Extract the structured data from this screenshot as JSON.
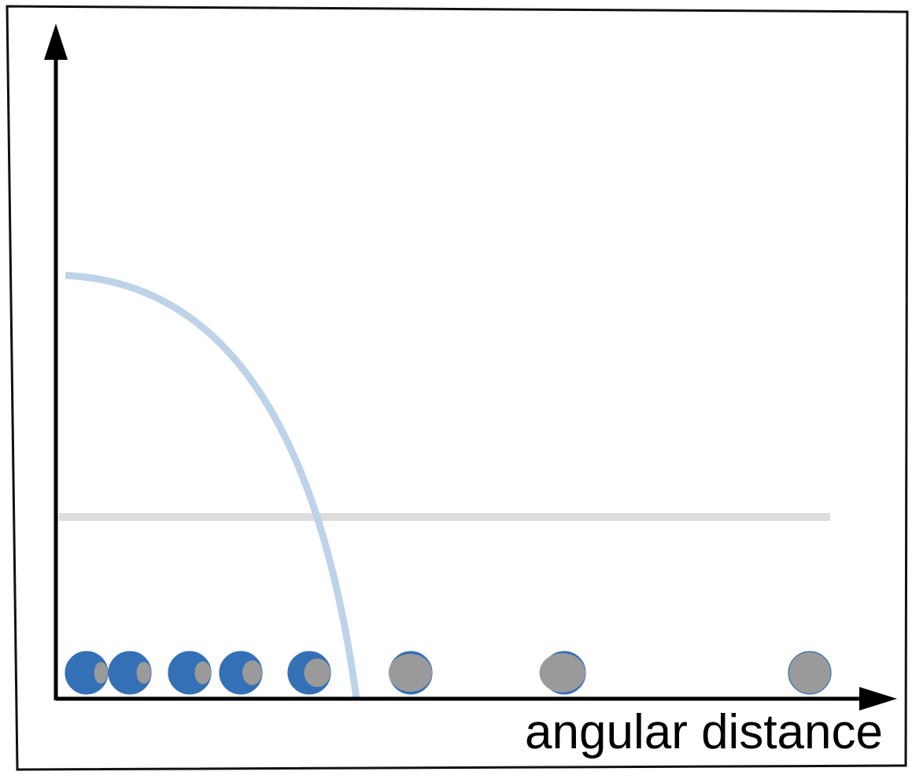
{
  "axis": {
    "x_label": "angular distance",
    "y_label": ""
  },
  "colors": {
    "frame": "#111111",
    "axis": "#000000",
    "curve": "#bdd3e8",
    "threshold_line": "#dddddd",
    "moon_lit": "#3470b6",
    "moon_shadow": "#9a9a9a"
  },
  "moon_phases": [
    {
      "lit_fraction": 0.9
    },
    {
      "lit_fraction": 0.88
    },
    {
      "lit_fraction": 0.84
    },
    {
      "lit_fraction": 0.76
    },
    {
      "lit_fraction": 0.6
    },
    {
      "lit_fraction": 0.2
    },
    {
      "lit_fraction": 0.14
    },
    {
      "lit_fraction": 0.0
    }
  ]
}
